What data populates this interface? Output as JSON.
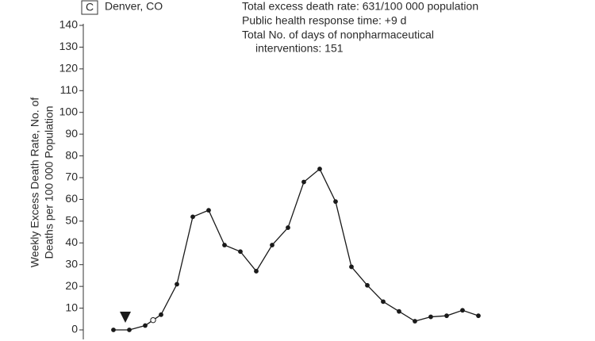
{
  "panel_label": "C",
  "chart_data": {
    "type": "line",
    "title": "Denver, CO",
    "annotations": [
      "Total excess death rate: 631/100 000 population",
      "Public health response time: +9 d",
      "Total No. of days of nonpharmaceutical",
      "interventions: 151"
    ],
    "ylabel": [
      "Weekly Excess Death Rate, No. of",
      "Deaths per 100 000 Population"
    ],
    "x": [
      0,
      1,
      2,
      2.5,
      3,
      4,
      5,
      6,
      7,
      8,
      9,
      10,
      11,
      12,
      13,
      14,
      15,
      16,
      17,
      18,
      19,
      20,
      21,
      22,
      23
    ],
    "series": [
      {
        "color": "#1a1a1a",
        "values": [
          0,
          0,
          2,
          4.5,
          7,
          21,
          52,
          55,
          39,
          36,
          27,
          39,
          47,
          68,
          74,
          59,
          29,
          20.5,
          13,
          8.5,
          4,
          6,
          6.5,
          9,
          6.5
        ],
        "hollow_points": [
          3
        ]
      }
    ],
    "xlim": [
      -1.9,
      23.85
    ],
    "ylim": [
      0,
      140
    ],
    "yticks": [
      0,
      10,
      20,
      30,
      40,
      50,
      60,
      70,
      80,
      90,
      100,
      110,
      120,
      130,
      140
    ]
  }
}
